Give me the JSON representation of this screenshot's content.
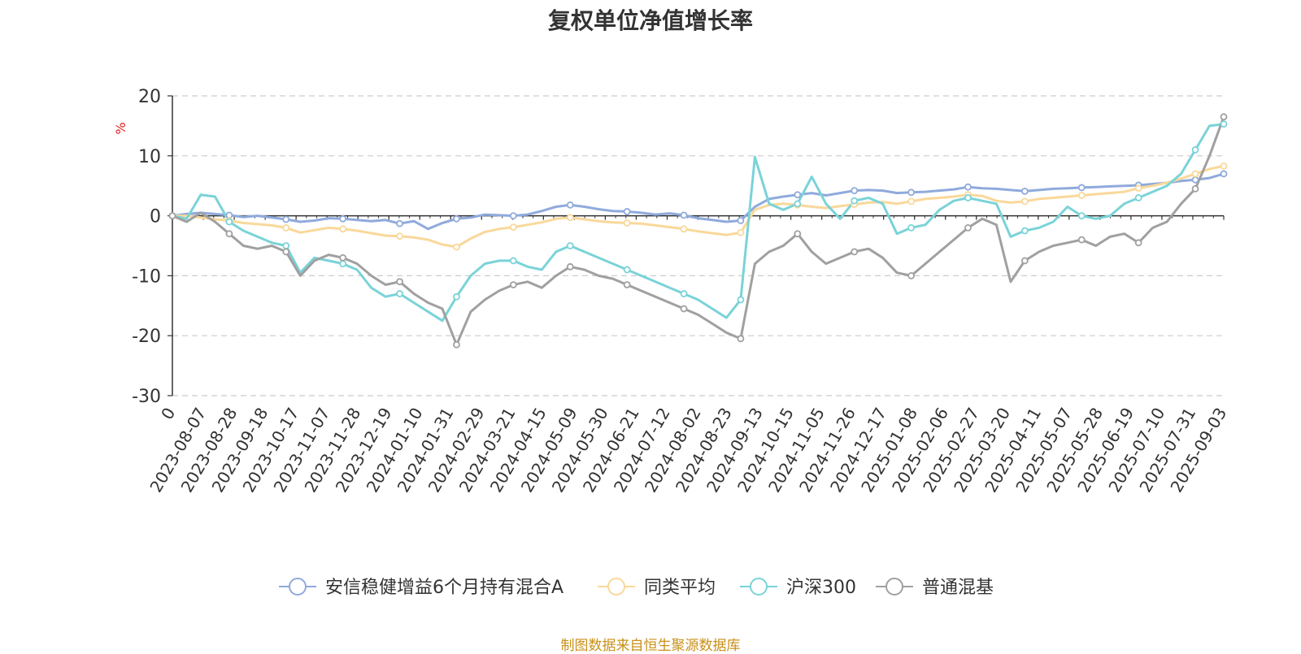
{
  "chart_data": {
    "type": "line",
    "title": "复权单位净值增长率",
    "ylabel": "%",
    "ylim": [
      -30,
      20
    ],
    "yticks": [
      -30,
      -20,
      -10,
      0,
      10,
      20
    ],
    "y_tick_labels": [
      "-30",
      "-20",
      "-10",
      "0",
      "10",
      "20"
    ],
    "x_start_label": "0",
    "x_tick_labels": [
      "2023-08-07",
      "2023-08-28",
      "2023-09-18",
      "2023-10-17",
      "2023-11-07",
      "2023-11-28",
      "2023-12-19",
      "2024-01-10",
      "2024-01-31",
      "2024-02-29",
      "2024-03-21",
      "2024-04-15",
      "2024-05-09",
      "2024-05-30",
      "2024-06-21",
      "2024-07-12",
      "2024-08-02",
      "2024-08-23",
      "2024-09-13",
      "2024-10-15",
      "2024-11-05",
      "2024-11-26",
      "2024-12-17",
      "2025-01-08",
      "2025-02-06",
      "2025-02-27",
      "2025-03-20",
      "2025-04-11",
      "2025-05-07",
      "2025-05-28",
      "2025-06-19",
      "2025-07-10",
      "2025-07-31",
      "2025-09-03"
    ],
    "grid": true,
    "legend_position": "bottom",
    "series": [
      {
        "name": "安信稳健增益6个月持有混合A",
        "color": "#8faadc",
        "values": [
          0,
          0.3,
          0.5,
          0.3,
          0.1,
          -0.2,
          0,
          -0.3,
          -0.6,
          -1.0,
          -0.8,
          -0.4,
          -0.5,
          -0.7,
          -0.9,
          -0.7,
          -1.3,
          -0.9,
          -2.2,
          -1.2,
          -0.5,
          -0.3,
          0.2,
          0.1,
          0,
          0.2,
          0.8,
          1.5,
          1.8,
          1.5,
          1.1,
          0.8,
          0.7,
          0.5,
          0.2,
          0.4,
          0.1,
          -0.4,
          -0.7,
          -1.0,
          -0.8,
          1.5,
          2.8,
          3.2,
          3.5,
          3.8,
          3.4,
          3.8,
          4.2,
          4.3,
          4.2,
          3.8,
          3.9,
          4.0,
          4.2,
          4.4,
          4.8,
          4.6,
          4.5,
          4.3,
          4.1,
          4.3,
          4.5,
          4.6,
          4.7,
          4.8,
          4.9,
          5.0,
          5.1,
          5.3,
          5.5,
          5.8,
          6.0,
          6.3,
          7.0
        ]
      },
      {
        "name": "同类平均",
        "color": "#f9d89a",
        "values": [
          0,
          0,
          -0.3,
          -0.6,
          -0.8,
          -1.2,
          -1.4,
          -1.6,
          -2.0,
          -2.8,
          -2.4,
          -2.0,
          -2.2,
          -2.5,
          -2.9,
          -3.3,
          -3.4,
          -3.6,
          -4.0,
          -4.8,
          -5.2,
          -3.8,
          -2.7,
          -2.2,
          -1.9,
          -1.5,
          -1.1,
          -0.5,
          -0.3,
          -0.6,
          -0.9,
          -1.1,
          -1.2,
          -1.3,
          -1.6,
          -1.9,
          -2.2,
          -2.6,
          -2.9,
          -3.2,
          -2.8,
          1.0,
          1.8,
          2.0,
          1.8,
          1.5,
          1.3,
          1.6,
          1.9,
          2.2,
          2.3,
          2.0,
          2.4,
          2.8,
          3.0,
          3.2,
          3.5,
          3.3,
          2.5,
          2.2,
          2.4,
          2.8,
          3.0,
          3.2,
          3.4,
          3.6,
          3.8,
          4.0,
          4.6,
          5.0,
          5.5,
          6.2,
          7.0,
          7.8,
          8.3
        ]
      },
      {
        "name": "沪深300",
        "color": "#7ad3d8",
        "values": [
          0,
          -0.5,
          3.5,
          3.2,
          -1.0,
          -2.5,
          -3.5,
          -4.5,
          -5.0,
          -9.5,
          -7.0,
          -7.5,
          -8.0,
          -9.0,
          -12.0,
          -13.5,
          -13.0,
          -14.5,
          -16.0,
          -17.5,
          -13.5,
          -10.0,
          -8.0,
          -7.5,
          -7.5,
          -8.5,
          -9.0,
          -6.0,
          -5.0,
          -6.0,
          -7.0,
          -8.0,
          -9.0,
          -10.0,
          -11.0,
          -12.0,
          -13.0,
          -14.0,
          -15.5,
          -17.0,
          -14.0,
          9.8,
          2.0,
          1.0,
          2.0,
          6.5,
          2.0,
          -0.5,
          2.5,
          3.0,
          2.0,
          -3.0,
          -2.0,
          -1.5,
          1.0,
          2.5,
          3.0,
          2.5,
          2.0,
          -3.5,
          -2.5,
          -2.0,
          -1.0,
          1.5,
          0,
          -0.5,
          0,
          2.0,
          3.0,
          4.0,
          5.0,
          7.0,
          11.0,
          15.0,
          15.3
        ]
      },
      {
        "name": "普通混基",
        "color": "#a0a0a0",
        "values": [
          0,
          -1.0,
          0.5,
          -1.0,
          -3.0,
          -5.0,
          -5.5,
          -5.0,
          -6.0,
          -10.0,
          -7.5,
          -6.5,
          -7.0,
          -8.0,
          -10.0,
          -11.5,
          -11.0,
          -13.0,
          -14.5,
          -15.5,
          -21.5,
          -16.0,
          -14.0,
          -12.5,
          -11.5,
          -11.0,
          -12.0,
          -10.0,
          -8.5,
          -9.0,
          -10.0,
          -10.5,
          -11.5,
          -12.5,
          -13.5,
          -14.5,
          -15.5,
          -16.5,
          -18.0,
          -19.5,
          -20.5,
          -8.0,
          -6.0,
          -5.0,
          -3.0,
          -6.0,
          -8.0,
          -7.0,
          -6.0,
          -5.5,
          -7.0,
          -9.5,
          -10.0,
          -8.0,
          -6.0,
          -4.0,
          -2.0,
          -0.5,
          -1.5,
          -11.0,
          -7.5,
          -6.0,
          -5.0,
          -4.5,
          -4.0,
          -5.0,
          -3.5,
          -3.0,
          -4.5,
          -2.0,
          -1.0,
          2.0,
          4.5,
          10.0,
          16.5
        ]
      }
    ]
  },
  "footer": {
    "source": "制图数据来自恒生聚源数据库"
  }
}
